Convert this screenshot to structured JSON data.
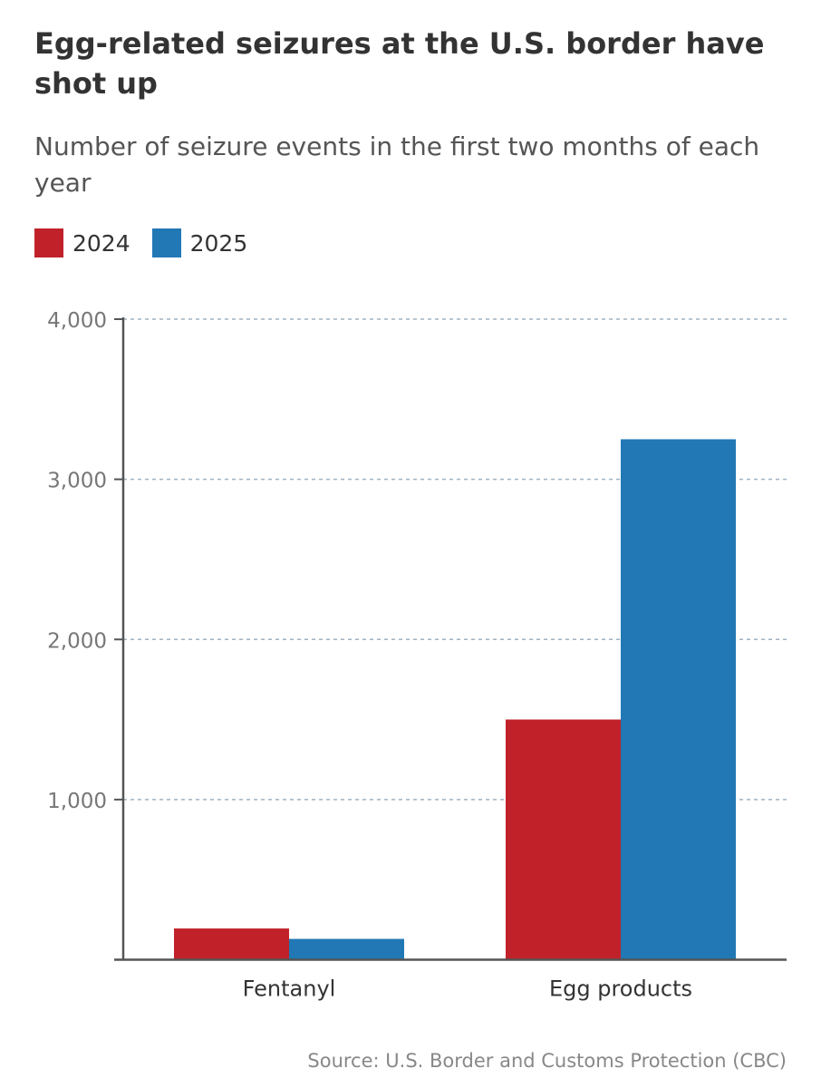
{
  "title": "Egg-related seizures at the U.S. border have shot up",
  "subtitle": "Number of seizure events in the first two months of each year",
  "source": "Source: U.S. Border and Customs Protection (CBC)",
  "colors": {
    "y2024": "#c1222a",
    "y2025": "#2278b5",
    "grid": "#9fb2c2",
    "axis": "#555555"
  },
  "chart_data": {
    "type": "bar",
    "title": "Egg-related seizures at the U.S. border have shot up",
    "subtitle": "Number of seizure events in the first two months of each year",
    "xlabel": "",
    "ylabel": "",
    "categories": [
      "Fentanyl",
      "Egg products"
    ],
    "series": [
      {
        "name": "2024",
        "color": "#c1222a",
        "values": [
          195,
          1500
        ]
      },
      {
        "name": "2025",
        "color": "#2278b5",
        "values": [
          130,
          3250
        ]
      }
    ],
    "ylim": [
      0,
      4000
    ],
    "yticks": [
      {
        "value": 1000,
        "label": "1,000"
      },
      {
        "value": 2000,
        "label": "2,000"
      },
      {
        "value": 3000,
        "label": "3,000"
      },
      {
        "value": 4000,
        "label": "4,000"
      }
    ],
    "grid": true,
    "legend": "top-left"
  }
}
